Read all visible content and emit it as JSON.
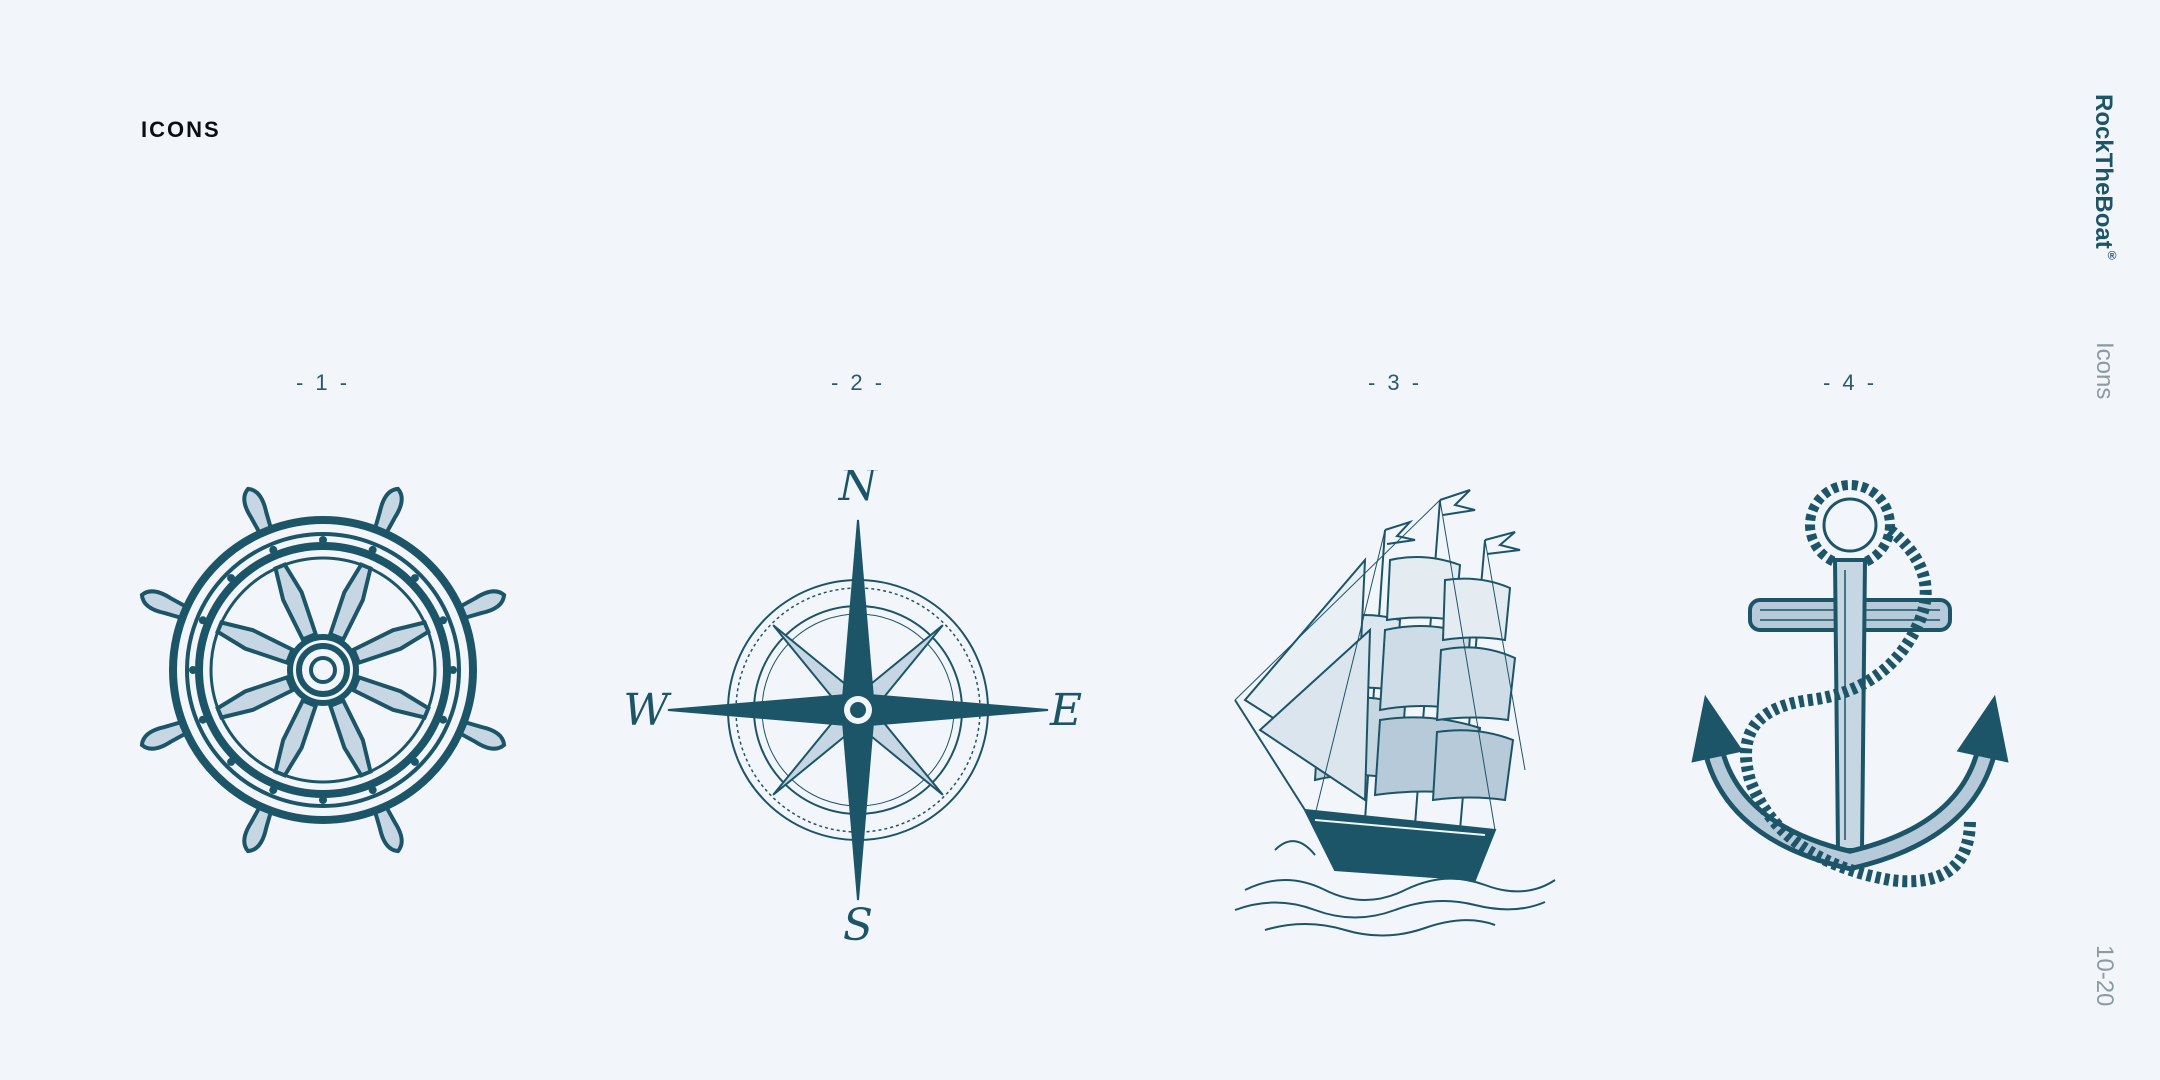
{
  "header": {
    "title": "ICONS"
  },
  "sidebar": {
    "brand": "RockTheBoat",
    "brand_mark": "®",
    "section": "Icons",
    "page": "10-20"
  },
  "icons": [
    {
      "number": "- 1 -",
      "icon": "ship-wheel-icon"
    },
    {
      "number": "- 2 -",
      "icon": "compass-rose-icon",
      "letters": {
        "north": "N",
        "south": "S",
        "east": "E",
        "west": "W"
      }
    },
    {
      "number": "- 3 -",
      "icon": "sailing-ship-icon"
    },
    {
      "number": "- 4 -",
      "icon": "anchor-icon"
    }
  ],
  "colors": {
    "background": "#f2f6fa",
    "accent": "#1d5568",
    "title": "#0b0f14",
    "muted": "#8b9aa3"
  }
}
